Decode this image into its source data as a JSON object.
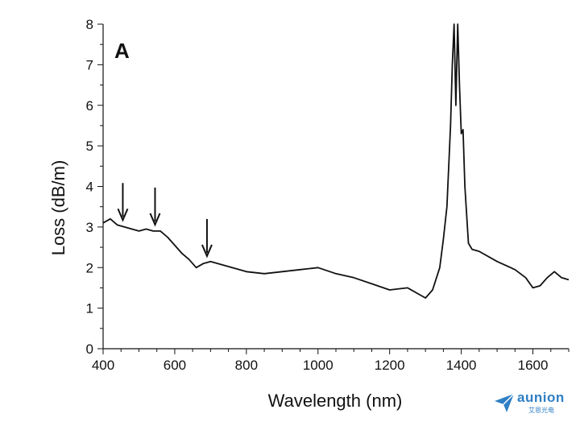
{
  "chart_data": {
    "type": "line",
    "panel_label": "A",
    "xlabel": "Wavelength (nm)",
    "ylabel": "Loss (dB/m)",
    "xlim": [
      400,
      1700
    ],
    "ylim": [
      0,
      8
    ],
    "xticks": [
      400,
      600,
      800,
      1000,
      1200,
      1400,
      1600
    ],
    "yticks": [
      0,
      1,
      2,
      3,
      4,
      5,
      6,
      7,
      8
    ],
    "grid": false,
    "line_color": "#111111",
    "series": [
      {
        "x": [
          400,
          420,
          440,
          460,
          480,
          500,
          520,
          540,
          560,
          580,
          600,
          620,
          640,
          660,
          680,
          700,
          720,
          740,
          760,
          780,
          800,
          850,
          900,
          950,
          1000,
          1050,
          1100,
          1150,
          1200,
          1250,
          1280,
          1300,
          1320,
          1340,
          1350,
          1360,
          1370,
          1375,
          1380,
          1385,
          1390,
          1395,
          1400,
          1405,
          1410,
          1420,
          1430,
          1450,
          1500,
          1550,
          1580,
          1600,
          1620,
          1640,
          1660,
          1680,
          1700
        ],
        "y": [
          3.1,
          3.2,
          3.05,
          3.0,
          2.95,
          2.9,
          2.95,
          2.9,
          2.9,
          2.75,
          2.55,
          2.35,
          2.2,
          2.0,
          2.1,
          2.15,
          2.1,
          2.05,
          2.0,
          1.95,
          1.9,
          1.85,
          1.9,
          1.95,
          2.0,
          1.85,
          1.75,
          1.6,
          1.45,
          1.5,
          1.35,
          1.25,
          1.45,
          2.0,
          2.7,
          3.5,
          5.5,
          7.0,
          8.0,
          6.0,
          8.0,
          6.5,
          5.3,
          5.4,
          4.0,
          2.6,
          2.45,
          2.4,
          2.15,
          1.95,
          1.75,
          1.5,
          1.55,
          1.75,
          1.9,
          1.75,
          1.7
        ]
      }
    ],
    "arrows_at": [
      455,
      545,
      690
    ]
  },
  "watermark": {
    "name": "aunion",
    "subtitle": "艾恩光电",
    "color": "#2e7fc4"
  }
}
